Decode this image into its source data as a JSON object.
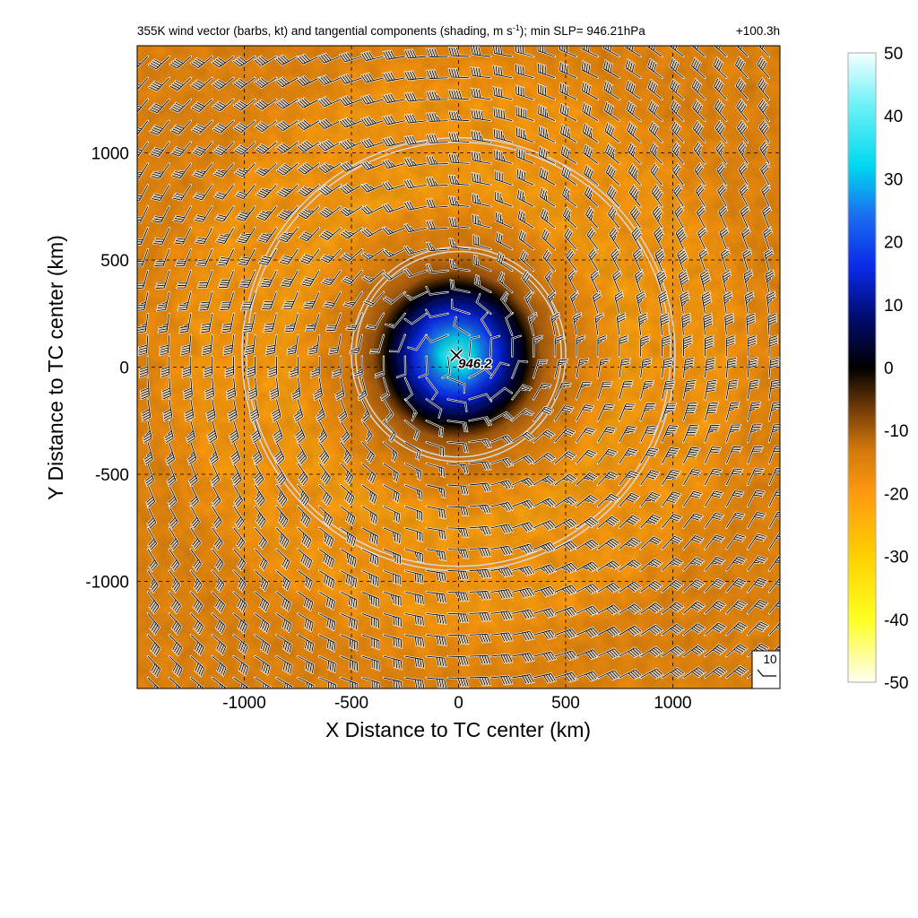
{
  "chart_data": {
    "type": "heatmap",
    "title_main": "355K wind vector (barbs, kt) and tangential components (shading, m s",
    "title_sup": "-1",
    "title_tail": "); min SLP= 946.21hPa",
    "valid_time": "+100.3h",
    "xlabel": "X Distance to TC center (km)",
    "ylabel": "Y Distance to TC center (km)",
    "xlim": [
      -1500,
      1500
    ],
    "ylim": [
      -1500,
      1500
    ],
    "xticks": [
      -1000,
      -500,
      0,
      500,
      1000
    ],
    "yticks": [
      -1000,
      -500,
      0,
      500,
      1000
    ],
    "grid": true,
    "colorbar": {
      "min": -50,
      "max": 50,
      "ticks": [
        50,
        40,
        30,
        20,
        10,
        0,
        -10,
        -20,
        -30,
        -40,
        -50
      ],
      "stops": [
        {
          "value": -50,
          "color": "#fffef2"
        },
        {
          "value": -40,
          "color": "#ffff22"
        },
        {
          "value": -30,
          "color": "#ffd000"
        },
        {
          "value": -20,
          "color": "#ff9a10"
        },
        {
          "value": -13,
          "color": "#d2780a"
        },
        {
          "value": -7,
          "color": "#7a4008"
        },
        {
          "value": 0,
          "color": "#000000"
        },
        {
          "value": 8,
          "color": "#000c70"
        },
        {
          "value": 16,
          "color": "#0a2ae8"
        },
        {
          "value": 24,
          "color": "#1a6cf0"
        },
        {
          "value": 32,
          "color": "#00d8f0"
        },
        {
          "value": 42,
          "color": "#70f2f8"
        },
        {
          "value": 50,
          "color": "#f4ffff"
        }
      ]
    },
    "tangential_wind_profile": {
      "radius_km": [
        0,
        100,
        200,
        300,
        350,
        400,
        500,
        600,
        800,
        1000,
        1200,
        1500
      ],
      "value_ms": [
        44,
        30,
        16,
        4,
        -3,
        -10,
        -14,
        -17,
        -22,
        -20,
        -21,
        -17
      ]
    },
    "range_rings": [
      {
        "center_x": 0,
        "center_y": 60,
        "radius_km": 490
      },
      {
        "center_x": 0,
        "center_y": 60,
        "radius_km": 1000
      }
    ],
    "barbs": {
      "spacing_km": 100,
      "flow": "clockwise circulation around center",
      "reference_speed_kt": 10,
      "reference_label": "10"
    },
    "center_marker": {
      "x": -10,
      "y": 55,
      "label": "946.2",
      "marker": "x-icon"
    }
  }
}
